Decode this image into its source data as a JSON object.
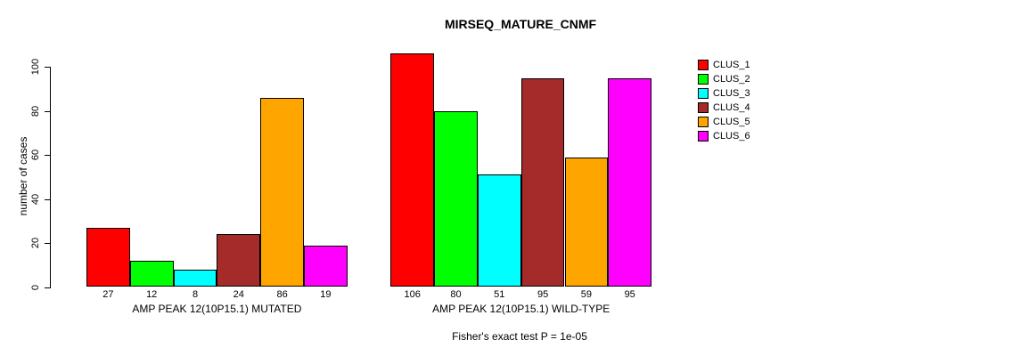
{
  "title": "MIRSEQ_MATURE_CNMF",
  "chart_data": {
    "type": "bar",
    "title": "MIRSEQ_MATURE_CNMF",
    "ylabel": "number of cases",
    "ylim": [
      0,
      100
    ],
    "yticks": [
      0,
      20,
      40,
      60,
      80,
      100
    ],
    "grid": false,
    "legend_position": "right",
    "series_names": [
      "CLUS_1",
      "CLUS_2",
      "CLUS_3",
      "CLUS_4",
      "CLUS_5",
      "CLUS_6"
    ],
    "colors": [
      "#FF0000",
      "#00FF00",
      "#00FFFF",
      "#A52A2A",
      "#FFA500",
      "#FF00FF"
    ],
    "groups": [
      {
        "label": "AMP PEAK 12(10P15.1) MUTATED",
        "values": [
          27,
          12,
          8,
          24,
          86,
          19
        ]
      },
      {
        "label": "AMP PEAK 12(10P15.1) WILD-TYPE",
        "values": [
          106,
          80,
          51,
          95,
          59,
          95
        ]
      }
    ],
    "annotation": "Fisher's exact test P = 1e-05"
  },
  "legend": {
    "entries": [
      {
        "label": "CLUS_1",
        "color": "#FF0000"
      },
      {
        "label": "CLUS_2",
        "color": "#00FF00"
      },
      {
        "label": "CLUS_3",
        "color": "#00FFFF"
      },
      {
        "label": "CLUS_4",
        "color": "#A52A2A"
      },
      {
        "label": "CLUS_5",
        "color": "#FFA500"
      },
      {
        "label": "CLUS_6",
        "color": "#FF00FF"
      }
    ]
  }
}
